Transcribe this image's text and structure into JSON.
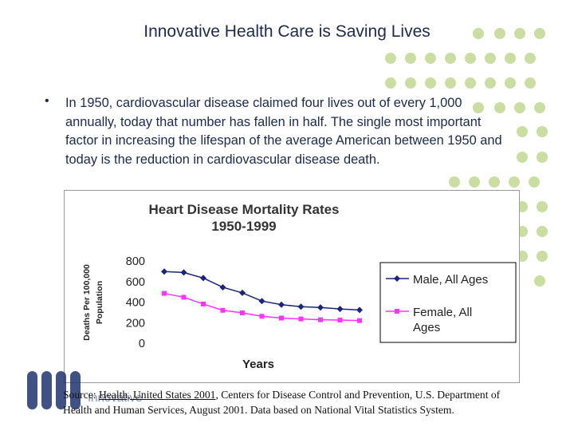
{
  "slide": {
    "title": "Innovative Health Care is Saving Lives",
    "bullet_symbol": "•",
    "bullet_text": "In 1950, cardiovascular disease claimed four lives out of every 1,000 annually, today that number has fallen in half.  The single most important factor in increasing the lifespan of the average American between 1950 and today is the reduction in cardiovascular disease death."
  },
  "source": {
    "prefix": "Source: ",
    "link_text": "Health, United States 2001",
    "rest": ", Centers for Disease Control and Prevention, U.S. Department of Health and Human Services, August 2001. Data based on National Vital Statistics System."
  },
  "logo": {
    "text": "Innovative"
  },
  "colors": {
    "accent_dots": "#c9dea0",
    "male_series": "#1a237e",
    "female_series": "#ff33ff",
    "title_text": "#1b2a52"
  },
  "chart_data": {
    "type": "line",
    "title_line1": "Heart Disease Mortality Rates",
    "title_line2": "1950-1999",
    "xlabel": "Years",
    "ylabel_line1": "Deaths Per 100,000",
    "ylabel_line2": "Population",
    "ylim": [
      0,
      800
    ],
    "yticks": [
      "800",
      "600",
      "400",
      "200",
      "0"
    ],
    "grid": false,
    "legend_position": "right",
    "series": [
      {
        "name": "Male, All Ages",
        "legend_line1": "Male, All Ages",
        "legend_line2": "",
        "color": "#1a237e",
        "marker": "diamond",
        "values": [
          697,
          688,
          634,
          544,
          490,
          410,
          375,
          355,
          348,
          333,
          323
        ]
      },
      {
        "name": "Female, All Ages",
        "legend_line1": "Female, All",
        "legend_line2": "Ages",
        "color": "#ff33ff",
        "marker": "square",
        "values": [
          485,
          447,
          381,
          320,
          295,
          262,
          245,
          236,
          228,
          225,
          220
        ]
      }
    ]
  }
}
